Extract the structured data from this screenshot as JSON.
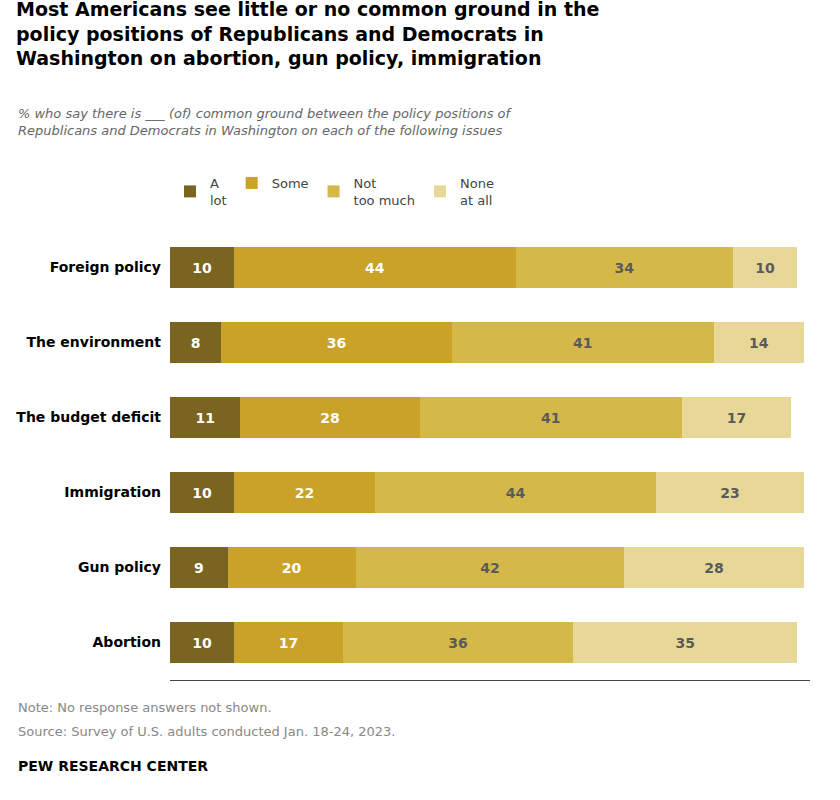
{
  "chart_data": {
    "type": "bar",
    "orientation": "horizontal",
    "stacked": true,
    "data_labels": true,
    "grid": false,
    "legend": "top",
    "tick_labels": "y",
    "title": "Most Americans see little or no common ground in the\npolicy positions of Republicans and Democrats in\nWashington on abortion, gun policy, immigration",
    "subtitle": "% who say there is ___ (of) common ground between the policy positions of\nRepublicans and Democrats in Washington on each of the following issues",
    "annotations": [
      "Note: No response answers not shown.",
      "Source: Survey of U.S. adults conducted Jan. 18-24, 2023.",
      "PEW RESEARCH CENTER"
    ],
    "categories": [
      "Foreign policy",
      "The environment",
      "The budget deficit",
      "Immigration",
      "Gun policy",
      "Abortion"
    ],
    "series": [
      {
        "name": "A\nlot",
        "color": "#7a6520",
        "values": [
          10,
          8,
          11,
          10,
          9,
          10
        ]
      },
      {
        "name": "Some",
        "color": "#c9a227",
        "values": [
          44,
          36,
          28,
          22,
          20,
          17
        ]
      },
      {
        "name": "Not\ntoo much",
        "color": "#d4b84a",
        "values": [
          34,
          41,
          41,
          44,
          42,
          36
        ]
      },
      {
        "name": "None\nat all",
        "color": "#e8d898",
        "values": [
          10,
          14,
          17,
          23,
          28,
          35
        ]
      }
    ],
    "xlim": [
      0,
      100
    ]
  }
}
